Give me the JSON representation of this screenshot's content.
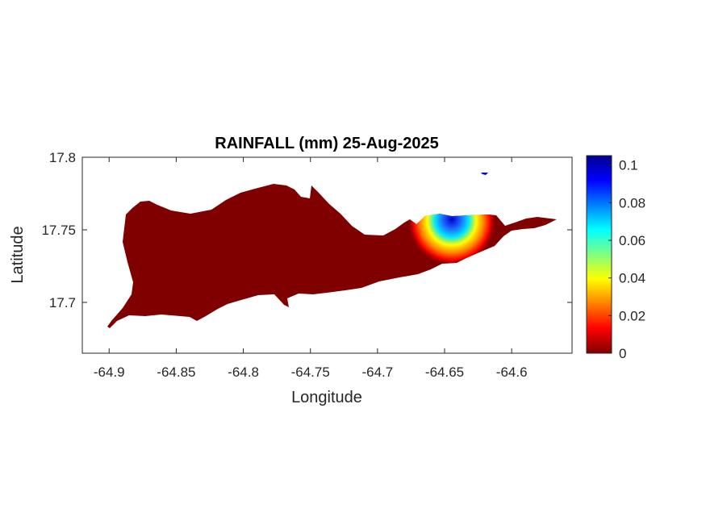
{
  "chart_data": {
    "type": "heatmap",
    "title": "RAINFALL (mm) 25-Aug-2025",
    "xlabel": "Longitude",
    "ylabel": "Latitude",
    "xlim": [
      -64.92,
      -64.555
    ],
    "ylim": [
      17.665,
      17.8
    ],
    "xticks": [
      -64.9,
      -64.85,
      -64.8,
      -64.75,
      -64.7,
      -64.65,
      -64.6
    ],
    "xtick_labels": [
      "-64.9",
      "-64.85",
      "-64.8",
      "-64.75",
      "-64.7",
      "-64.65",
      "-64.6"
    ],
    "yticks": [
      17.7,
      17.75,
      17.8
    ],
    "ytick_labels": [
      "17.7",
      "17.75",
      "17.8"
    ],
    "colorbar": {
      "min": 0,
      "max": 0.105,
      "ticks": [
        0,
        0.02,
        0.04,
        0.06,
        0.08,
        0.1
      ],
      "tick_labels": [
        "0",
        "0.02",
        "0.04",
        "0.06",
        "0.08",
        "0.1"
      ],
      "colormap": "jet"
    },
    "background_value_mm": 0,
    "rain_maxima": [
      {
        "lon": -64.649,
        "lat": 17.752,
        "value_mm": 0.1
      },
      {
        "lon": -64.622,
        "lat": 17.788,
        "value_mm": 0.1
      }
    ],
    "grid": false,
    "colors": {
      "land_zero": "#800000",
      "axes": "#262626"
    }
  }
}
